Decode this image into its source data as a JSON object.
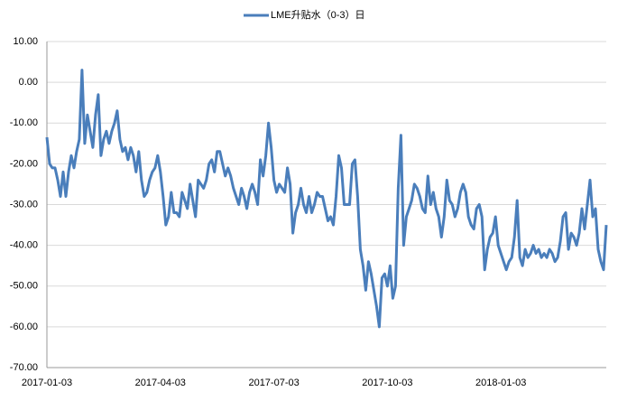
{
  "chart_data": {
    "type": "line",
    "categories": [
      "2017-01-03",
      null,
      null,
      null,
      null,
      null,
      null,
      null,
      null,
      null,
      null,
      null,
      null,
      null,
      null,
      null,
      null,
      null,
      null,
      null,
      null,
      null,
      null,
      null,
      null,
      null,
      null,
      null,
      null,
      null,
      null,
      null,
      null,
      null,
      null,
      null,
      null,
      null,
      null,
      null,
      null,
      null,
      "2017-04-03",
      null,
      null,
      null,
      null,
      null,
      null,
      null,
      null,
      null,
      null,
      null,
      null,
      null,
      null,
      null,
      null,
      null,
      null,
      null,
      null,
      null,
      null,
      null,
      null,
      null,
      null,
      null,
      null,
      null,
      null,
      null,
      null,
      null,
      null,
      null,
      null,
      null,
      null,
      null,
      null,
      null,
      "2017-07-03",
      null,
      null,
      null,
      null,
      null,
      null,
      null,
      null,
      null,
      null,
      null,
      null,
      null,
      null,
      null,
      null,
      null,
      null,
      null,
      null,
      null,
      null,
      null,
      null,
      null,
      null,
      null,
      null,
      null,
      null,
      null,
      null,
      null,
      null,
      null,
      null,
      null,
      null,
      null,
      null,
      null,
      "2017-10-03",
      null,
      null,
      null,
      null,
      null,
      null,
      null,
      null,
      null,
      null,
      null,
      null,
      null,
      null,
      null,
      null,
      null,
      null,
      null,
      null,
      null,
      null,
      null,
      null,
      null,
      null,
      null,
      null,
      null,
      null,
      null,
      null,
      null,
      null,
      null,
      null,
      null,
      null,
      null,
      null,
      null,
      "2018-01-03",
      null,
      null,
      null,
      null,
      null,
      null,
      null,
      null,
      null,
      null,
      null,
      null,
      null,
      null,
      null,
      null,
      null,
      null,
      null,
      null,
      null,
      null,
      null,
      null,
      null,
      null,
      null,
      null,
      null,
      null,
      null,
      null,
      null,
      null,
      null,
      null,
      null,
      null,
      null
    ],
    "series": [
      {
        "name": "LME升贴水（0-3）日",
        "color": "#4a7ebb",
        "values": [
          -13.5,
          -20,
          -21,
          -21,
          -24,
          -28,
          -22,
          -28,
          -22,
          -18,
          -21,
          -17,
          -14,
          3,
          -15,
          -8,
          -12,
          -16,
          -8,
          -3,
          -18,
          -14,
          -12,
          -15,
          -12,
          -10,
          -7,
          -14,
          -17,
          -16,
          -19,
          -16,
          -18,
          -22,
          -17,
          -24,
          -28,
          -27,
          -24,
          -22,
          -21,
          -18,
          -22,
          -28,
          -35,
          -33,
          -27,
          -32,
          -32,
          -33,
          -27,
          -29,
          -31,
          -25,
          -29,
          -33,
          -24,
          -25,
          -26,
          -24,
          -20,
          -19,
          -22,
          -17,
          -17,
          -20,
          -23,
          -21,
          -23,
          -26,
          -28,
          -30,
          -26,
          -28,
          -31,
          -27,
          -25,
          -27,
          -30,
          -19,
          -23,
          -18,
          -10,
          -16,
          -24,
          -27,
          -25,
          -26,
          -27,
          -21,
          -25,
          -37,
          -32,
          -30,
          -26,
          -30,
          -32,
          -28,
          -32,
          -30,
          -27,
          -28,
          -28,
          -31,
          -34,
          -33,
          -35,
          -28,
          -18,
          -21,
          -30,
          -30,
          -30,
          -20,
          -19,
          -28,
          -41,
          -45,
          -51,
          -44,
          -47,
          -51,
          -55,
          -60,
          -48,
          -47,
          -50,
          -45,
          -53,
          -50,
          -26,
          -13,
          -40,
          -33,
          -31,
          -29,
          -25,
          -26,
          -28,
          -31,
          -32,
          -23,
          -30,
          -27,
          -31,
          -33,
          -38,
          -33,
          -24,
          -29,
          -30,
          -33,
          -31,
          -27,
          -25,
          -27,
          -33,
          -35,
          -36,
          -31,
          -30,
          -33,
          -46,
          -41,
          -38,
          -37,
          -33,
          -40,
          -42,
          -44,
          -46,
          -44,
          -43,
          -38,
          -29,
          -43,
          -45,
          -41,
          -43,
          -42,
          -40,
          -42,
          -41,
          -43,
          -42,
          -43,
          -41,
          -42,
          -44,
          -43,
          -39,
          -33,
          -32,
          -41,
          -37,
          -38,
          -40,
          -37,
          -31,
          -36,
          -30,
          -24,
          -33,
          -31,
          -41,
          -44,
          -46,
          -35
        ]
      }
    ],
    "ylim": [
      -70,
      10
    ],
    "yticks": [
      {
        "value": 10,
        "label": "10.00"
      },
      {
        "value": 0,
        "label": "0.00"
      },
      {
        "value": -10,
        "label": "-10.00"
      },
      {
        "value": -20,
        "label": "-20.00"
      },
      {
        "value": -30,
        "label": "-30.00"
      },
      {
        "value": -40,
        "label": "-40.00"
      },
      {
        "value": -50,
        "label": "-50.00"
      },
      {
        "value": -60,
        "label": "-60.00"
      },
      {
        "value": -70,
        "label": "-70.00"
      }
    ],
    "grid": true,
    "legend": "top"
  }
}
